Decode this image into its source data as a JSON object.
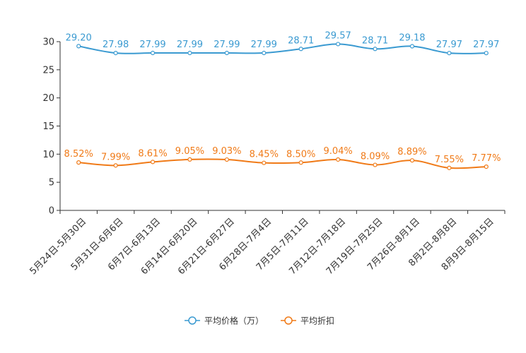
{
  "chart_data": {
    "type": "line",
    "title": "",
    "xlabel": "",
    "ylabel": "",
    "ylim": [
      0,
      30
    ],
    "yticks": [
      0,
      5,
      10,
      15,
      20,
      25,
      30
    ],
    "grid": false,
    "legend_position": "bottom-center",
    "categories": [
      "5月24日-5月30日",
      "5月31日-6月6日",
      "6月7日-6月13日",
      "6月14日-6月20日",
      "6月21日-6月27日",
      "6月28日-7月4日",
      "7月5日-7月11日",
      "7月12日-7月18日",
      "7月19日-7月25日",
      "7月26日-8月1日",
      "8月2日-8月8日",
      "8月9日-8月15日"
    ],
    "series": [
      {
        "name": "平均价格（万）",
        "color": "#3a9ad1",
        "values": [
          29.2,
          27.98,
          27.99,
          27.99,
          27.99,
          27.99,
          28.71,
          29.57,
          28.71,
          29.18,
          27.97,
          27.97
        ],
        "labels": [
          "29.20",
          "27.98",
          "27.99",
          "27.99",
          "27.99",
          "27.99",
          "28.71",
          "29.57",
          "28.71",
          "29.18",
          "27.97",
          "27.97"
        ]
      },
      {
        "name": "平均折扣",
        "color": "#f07a17",
        "values": [
          8.52,
          7.99,
          8.61,
          9.05,
          9.03,
          8.45,
          8.5,
          9.04,
          8.09,
          8.89,
          7.55,
          7.77
        ],
        "labels": [
          "8.52%",
          "7.99%",
          "8.61%",
          "9.05%",
          "9.03%",
          "8.45%",
          "8.50%",
          "9.04%",
          "8.09%",
          "8.89%",
          "7.55%",
          "7.77%"
        ]
      }
    ]
  }
}
